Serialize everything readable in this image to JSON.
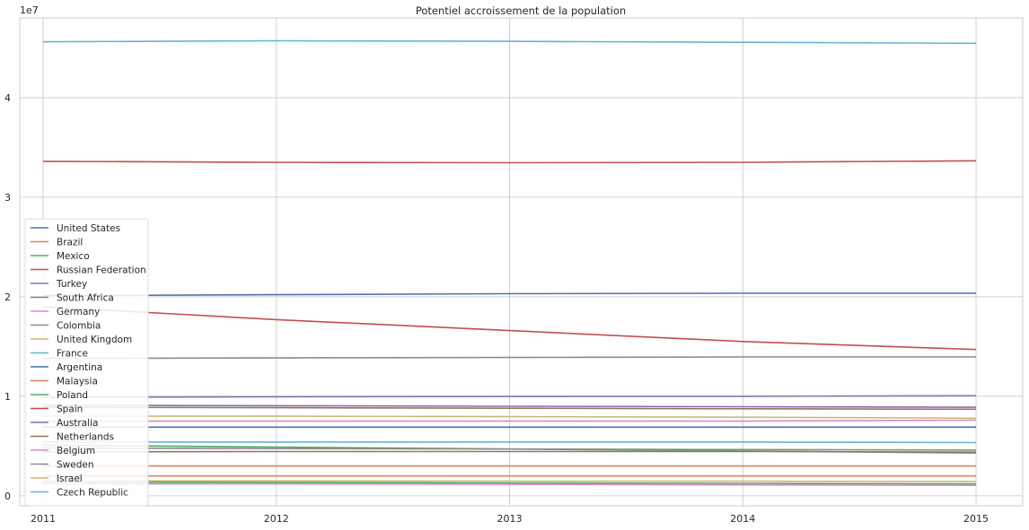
{
  "chart_data": {
    "type": "line",
    "title": "Potentiel accroissement de la population",
    "xlabel": "",
    "ylabel": "",
    "y_offset_label": "1e7",
    "x": [
      2011,
      2012,
      2013,
      2014,
      2015
    ],
    "x_ticks": [
      "2011",
      "2012",
      "2013",
      "2014",
      "2015"
    ],
    "y_ticks": [
      0,
      10000000,
      20000000,
      30000000,
      40000000
    ],
    "y_tick_labels": [
      "0",
      "1",
      "2",
      "3",
      "4"
    ],
    "ylim": [
      -1000000,
      48000000
    ],
    "xlim": [
      2010.9,
      2015.2
    ],
    "grid": true,
    "legend_position": "lower-left",
    "series": [
      {
        "name": "United States",
        "color": "#4c72b0",
        "values": [
          20100000,
          20200000,
          20300000,
          20350000,
          20350000
        ]
      },
      {
        "name": "Brazil",
        "color": "#dd8452",
        "values": [
          2000000,
          2000000,
          2000000,
          2000000,
          2000000
        ]
      },
      {
        "name": "Mexico",
        "color": "#55a868",
        "values": [
          5100000,
          4900000,
          4700000,
          4500000,
          4300000
        ]
      },
      {
        "name": "Russian Federation",
        "color": "#c44e52",
        "values": [
          19000000,
          17700000,
          16600000,
          15500000,
          14700000
        ]
      },
      {
        "name": "Turkey",
        "color": "#8172b3",
        "values": [
          9900000,
          9950000,
          9980000,
          10000000,
          10050000
        ]
      },
      {
        "name": "South Africa",
        "color": "#937860",
        "values": [
          4400000,
          4450000,
          4450000,
          4450000,
          4400000
        ]
      },
      {
        "name": "Germany",
        "color": "#da8bc3",
        "values": [
          7500000,
          7500000,
          7500000,
          7500000,
          7600000
        ]
      },
      {
        "name": "Colombia",
        "color": "#8c8c8c",
        "values": [
          13800000,
          13850000,
          13900000,
          13950000,
          13950000
        ]
      },
      {
        "name": "United Kingdom",
        "color": "#ccb974",
        "values": [
          8000000,
          8000000,
          7950000,
          7900000,
          7800000
        ]
      },
      {
        "name": "France",
        "color": "#64b5cd",
        "values": [
          5400000,
          5400000,
          5400000,
          5400000,
          5350000
        ]
      },
      {
        "name": "Argentina",
        "color": "#4c72b0",
        "values": [
          6900000,
          6900000,
          6900000,
          6900000,
          6900000
        ]
      },
      {
        "name": "Malaysia",
        "color": "#dd8452",
        "values": [
          3000000,
          3000000,
          3000000,
          3000000,
          3000000
        ]
      },
      {
        "name": "Poland",
        "color": "#55a868",
        "values": [
          1400000,
          1350000,
          1300000,
          1250000,
          1200000
        ]
      },
      {
        "name": "Spain",
        "color": "#c44e52",
        "values": [
          33600000,
          33500000,
          33450000,
          33500000,
          33650000
        ]
      },
      {
        "name": "Australia",
        "color": "#8172b3",
        "values": [
          9100000,
          9050000,
          9000000,
          8950000,
          8900000
        ]
      },
      {
        "name": "Netherlands",
        "color": "#937860",
        "values": [
          8900000,
          8850000,
          8800000,
          8750000,
          8700000
        ]
      },
      {
        "name": "Belgium",
        "color": "#da8bc3",
        "values": [
          1200000,
          1200000,
          1150000,
          1100000,
          1050000
        ]
      },
      {
        "name": "Sweden",
        "color": "#8c8c8c",
        "values": [
          4800000,
          4750000,
          4700000,
          4650000,
          4600000
        ]
      },
      {
        "name": "Israel",
        "color": "#ccb974",
        "values": [
          1500000,
          1500000,
          1480000,
          1470000,
          1450000
        ]
      },
      {
        "name": "Czech Republic",
        "color": "#64b5cd",
        "values": [
          45600000,
          45700000,
          45650000,
          45550000,
          45450000
        ]
      }
    ]
  }
}
